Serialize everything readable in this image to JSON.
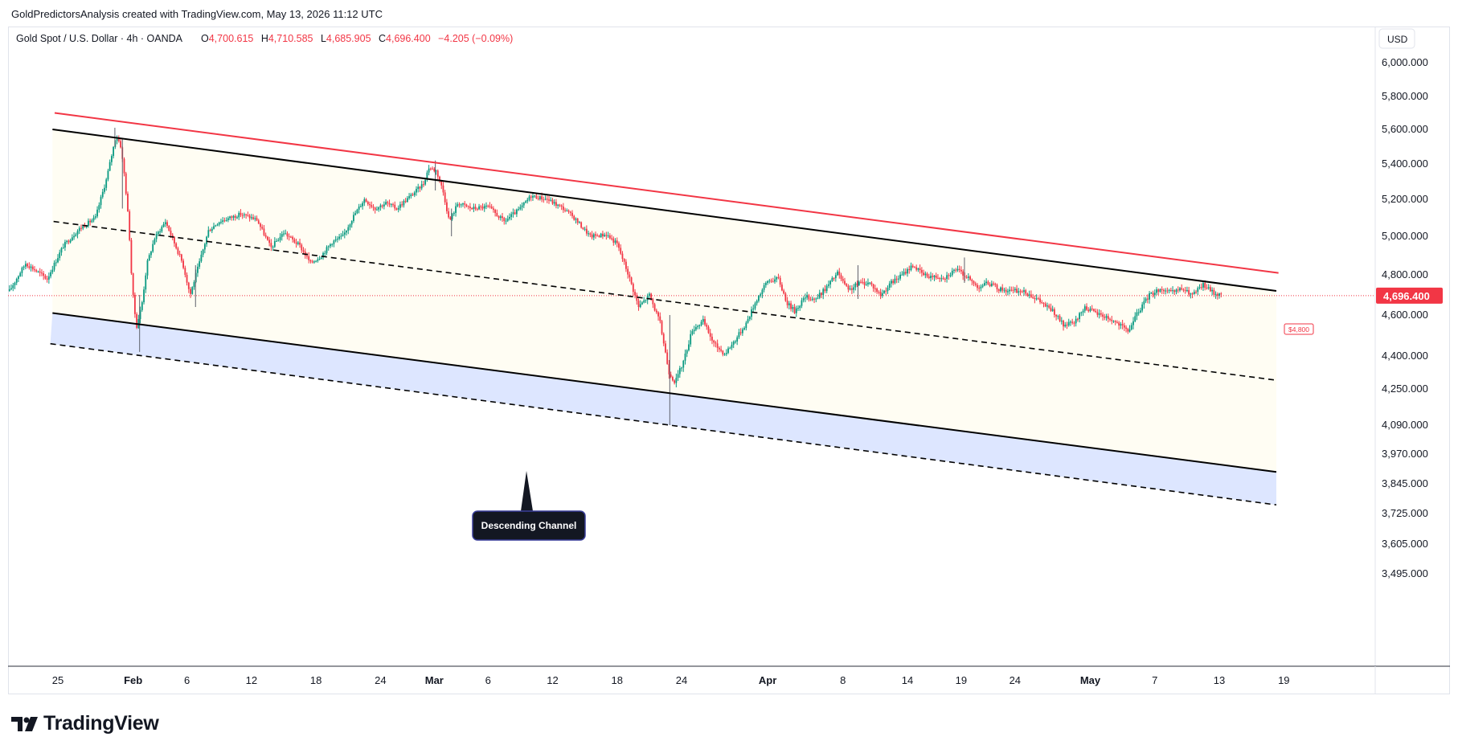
{
  "header": {
    "credit": "GoldPredictorsAnalysis created with TradingView.com, May 13, 2026 11:12 UTC"
  },
  "symbol": {
    "title": "Gold Spot / U.S. Dollar · 4h · OANDA",
    "open_label": "O",
    "open": "4,700.615",
    "high_label": "H",
    "high": "4,710.585",
    "low_label": "L",
    "low": "4,685.905",
    "close_label": "C",
    "close": "4,696.400",
    "change": "−4.205 (−0.09%)"
  },
  "price_axis": {
    "currency": "USD",
    "ticks": [
      {
        "label": "6,000.000",
        "value": 6000
      },
      {
        "label": "5,800.000",
        "value": 5800
      },
      {
        "label": "5,600.000",
        "value": 5600
      },
      {
        "label": "5,400.000",
        "value": 5400
      },
      {
        "label": "5,200.000",
        "value": 5200
      },
      {
        "label": "5,000.000",
        "value": 5000
      },
      {
        "label": "4,800.000",
        "value": 4800
      },
      {
        "label": "4,600.000",
        "value": 4600
      },
      {
        "label": "4,400.000",
        "value": 4400
      },
      {
        "label": "4,250.000",
        "value": 4250
      },
      {
        "label": "4,090.000",
        "value": 4090
      },
      {
        "label": "3,970.000",
        "value": 3970
      },
      {
        "label": "3,845.000",
        "value": 3845
      },
      {
        "label": "3,725.000",
        "value": 3725
      },
      {
        "label": "3,605.000",
        "value": 3605
      },
      {
        "label": "3,495.000",
        "value": 3495
      }
    ],
    "last_price_label": "4,696.400",
    "last_price": 4696.4
  },
  "time_axis": {
    "ticks": [
      {
        "label": "25",
        "day": 0
      },
      {
        "label": "Feb",
        "day": 7
      },
      {
        "label": "6",
        "day": 12
      },
      {
        "label": "12",
        "day": 18
      },
      {
        "label": "18",
        "day": 24
      },
      {
        "label": "24",
        "day": 30
      },
      {
        "label": "Mar",
        "day": 35
      },
      {
        "label": "6",
        "day": 40
      },
      {
        "label": "12",
        "day": 46
      },
      {
        "label": "18",
        "day": 52
      },
      {
        "label": "24",
        "day": 58
      },
      {
        "label": "Apr",
        "day": 66
      },
      {
        "label": "8",
        "day": 73
      },
      {
        "label": "14",
        "day": 79
      },
      {
        "label": "19",
        "day": 84
      },
      {
        "label": "24",
        "day": 89
      },
      {
        "label": "May",
        "day": 96
      },
      {
        "label": "7",
        "day": 102
      },
      {
        "label": "13",
        "day": 108
      },
      {
        "label": "19",
        "day": 114
      }
    ]
  },
  "annotations": {
    "channel_label": "Descending Channel",
    "level_tag": "$4,800"
  },
  "brand": {
    "name": "TradingView"
  },
  "colors": {
    "up": "#089981",
    "down": "#f23645",
    "upper_line": "#f23645",
    "channel_line": "#000000",
    "band_fill": "#dde6ff",
    "channel_fill": "#fffdf3",
    "last_price": "#f23645",
    "label_bg": "#131722"
  },
  "chart_data": {
    "type": "candlestick",
    "x_unit": "days from Jan 25, 2026",
    "ylim": [
      3495,
      6000
    ],
    "last_price": 4696.4,
    "lines": [
      {
        "name": "upper resistance",
        "style": "solid",
        "color": "#f23645",
        "points": [
          [
            -0.3,
            5700
          ],
          [
            113.5,
            4810
          ]
        ]
      },
      {
        "name": "channel top",
        "style": "solid",
        "color": "#000000",
        "points": [
          [
            -0.5,
            5600
          ],
          [
            113.3,
            4720
          ]
        ]
      },
      {
        "name": "channel middle",
        "style": "dashed",
        "color": "#000000",
        "points": [
          [
            -0.4,
            5080
          ],
          [
            113.3,
            4290
          ]
        ]
      },
      {
        "name": "channel bottom",
        "style": "solid",
        "color": "#000000",
        "points": [
          [
            -0.5,
            4610
          ],
          [
            113.3,
            3895
          ]
        ]
      },
      {
        "name": "lower band",
        "style": "dashed",
        "color": "#000000",
        "points": [
          [
            -0.7,
            4460
          ],
          [
            113.3,
            3760
          ]
        ]
      }
    ],
    "close_path": [
      [
        -4.5,
        4720
      ],
      [
        -3,
        4860
      ],
      [
        -1,
        4780
      ],
      [
        0.5,
        4950
      ],
      [
        2,
        5040
      ],
      [
        3.5,
        5100
      ],
      [
        4.5,
        5310
      ],
      [
        5,
        5450
      ],
      [
        5.4,
        5560
      ],
      [
        5.8,
        5520
      ],
      [
        6.2,
        5330
      ],
      [
        6.6,
        5060
      ],
      [
        6.9,
        4740
      ],
      [
        7.3,
        4540
      ],
      [
        7.8,
        4650
      ],
      [
        8.3,
        4860
      ],
      [
        9,
        4990
      ],
      [
        10,
        5080
      ],
      [
        10.8,
        4970
      ],
      [
        11.6,
        4860
      ],
      [
        12.3,
        4700
      ],
      [
        13.2,
        4870
      ],
      [
        14,
        5030
      ],
      [
        15,
        5080
      ],
      [
        16,
        5100
      ],
      [
        17,
        5120
      ],
      [
        18.5,
        5090
      ],
      [
        19.8,
        4940
      ],
      [
        21,
        5020
      ],
      [
        22.5,
        4950
      ],
      [
        23.5,
        4860
      ],
      [
        24.5,
        4900
      ],
      [
        25.5,
        4970
      ],
      [
        26.5,
        5000
      ],
      [
        27.5,
        5110
      ],
      [
        28.5,
        5200
      ],
      [
        29.5,
        5150
      ],
      [
        30.5,
        5180
      ],
      [
        31.5,
        5150
      ],
      [
        33,
        5230
      ],
      [
        34,
        5290
      ],
      [
        34.5,
        5380
      ],
      [
        35.2,
        5360
      ],
      [
        35.8,
        5250
      ],
      [
        36.4,
        5080
      ],
      [
        37.2,
        5180
      ],
      [
        38.5,
        5150
      ],
      [
        40,
        5160
      ],
      [
        41.5,
        5080
      ],
      [
        43,
        5150
      ],
      [
        44,
        5220
      ],
      [
        45.5,
        5200
      ],
      [
        47,
        5150
      ],
      [
        48,
        5100
      ],
      [
        49.5,
        5000
      ],
      [
        51,
        5010
      ],
      [
        52,
        4960
      ],
      [
        53,
        4810
      ],
      [
        54,
        4640
      ],
      [
        55,
        4700
      ],
      [
        56,
        4560
      ],
      [
        56.8,
        4330
      ],
      [
        57.4,
        4280
      ],
      [
        58.2,
        4380
      ],
      [
        59,
        4530
      ],
      [
        60,
        4570
      ],
      [
        61,
        4460
      ],
      [
        62,
        4410
      ],
      [
        63,
        4480
      ],
      [
        64,
        4560
      ],
      [
        65,
        4680
      ],
      [
        66,
        4770
      ],
      [
        67,
        4780
      ],
      [
        67.8,
        4660
      ],
      [
        68.5,
        4620
      ],
      [
        69.5,
        4690
      ],
      [
        70.5,
        4680
      ],
      [
        71.5,
        4740
      ],
      [
        72.5,
        4810
      ],
      [
        73.5,
        4720
      ],
      [
        74.5,
        4760
      ],
      [
        75.5,
        4760
      ],
      [
        76.5,
        4700
      ],
      [
        77.5,
        4760
      ],
      [
        78.5,
        4800
      ],
      [
        79.5,
        4850
      ],
      [
        80.5,
        4800
      ],
      [
        81.5,
        4790
      ],
      [
        82.5,
        4790
      ],
      [
        83.5,
        4830
      ],
      [
        84.5,
        4790
      ],
      [
        85.5,
        4740
      ],
      [
        86.5,
        4760
      ],
      [
        87.5,
        4730
      ],
      [
        88.5,
        4720
      ],
      [
        89.5,
        4720
      ],
      [
        90.5,
        4700
      ],
      [
        91.5,
        4660
      ],
      [
        92.5,
        4620
      ],
      [
        93.5,
        4550
      ],
      [
        94.5,
        4560
      ],
      [
        95.5,
        4640
      ],
      [
        96.5,
        4610
      ],
      [
        97.5,
        4590
      ],
      [
        98.5,
        4560
      ],
      [
        99.5,
        4520
      ],
      [
        100.5,
        4620
      ],
      [
        101.5,
        4700
      ],
      [
        102.5,
        4730
      ],
      [
        103.5,
        4710
      ],
      [
        104.5,
        4730
      ],
      [
        105.5,
        4700
      ],
      [
        106.5,
        4750
      ],
      [
        107.5,
        4710
      ],
      [
        108.3,
        4696
      ]
    ],
    "wicks": [
      {
        "x": 5.3,
        "high": 5610,
        "low": 5500
      },
      {
        "x": 6.0,
        "high": 5550,
        "low": 5150
      },
      {
        "x": 7.6,
        "high": 4700,
        "low": 4420
      },
      {
        "x": 12.8,
        "high": 4850,
        "low": 4640
      },
      {
        "x": 35.1,
        "high": 5420,
        "low": 5250
      },
      {
        "x": 36.6,
        "high": 5150,
        "low": 5000
      },
      {
        "x": 56.9,
        "high": 4600,
        "low": 4090
      },
      {
        "x": 74.4,
        "high": 4850,
        "low": 4680
      },
      {
        "x": 84.3,
        "high": 4890,
        "low": 4760
      }
    ]
  }
}
